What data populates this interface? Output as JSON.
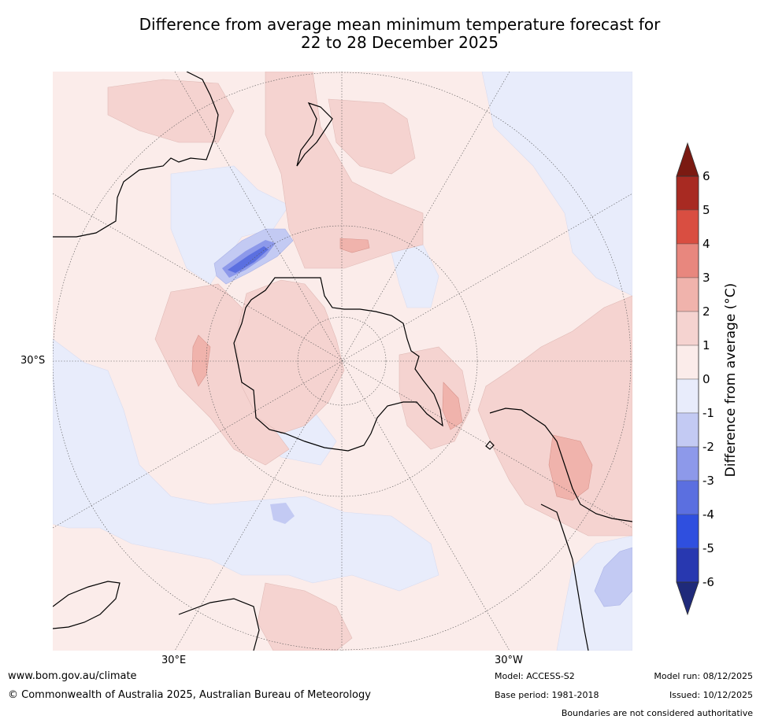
{
  "title": {
    "line1": "Difference from average mean minimum temperature forecast for",
    "line2": "22 to 28 December 2025"
  },
  "map": {
    "projection": "south polar stereographic",
    "lat_label": "30°S",
    "lon_labels": {
      "east": "30°E",
      "west": "30°W"
    }
  },
  "colorbar": {
    "label": "Difference from average (°C)",
    "ticks": [
      "6",
      "5",
      "4",
      "3",
      "2",
      "1",
      "0",
      "-1",
      "-2",
      "-3",
      "-4",
      "-5",
      "-6"
    ],
    "colors": {
      "over": "#7b1a12",
      "b6_5": "#a82a22",
      "b5_4": "#d94e41",
      "b4_3": "#e8877e",
      "b3_2": "#f0b3ac",
      "b2_1": "#f5d3d0",
      "b1_0": "#fbecea",
      "b0_m1": "#e8ecfb",
      "bm1_m2": "#c3caf3",
      "bm2_m3": "#8d99ea",
      "bm3_m4": "#5b6fe0",
      "bm4_m5": "#2f4fdf",
      "bm5_m6": "#2838b0",
      "under": "#1f2a7a"
    }
  },
  "footer": {
    "website": "www.bom.gov.au/climate",
    "copyright": "© Commonwealth of Australia 2025, Australian Bureau of Meteorology",
    "model": "Model: ACCESS-S2",
    "base_period": "Base period: 1981-2018",
    "model_run": "Model run: 08/12/2025",
    "issued": "Issued: 10/12/2025",
    "disclaimer": "Boundaries are not considered authoritative"
  }
}
